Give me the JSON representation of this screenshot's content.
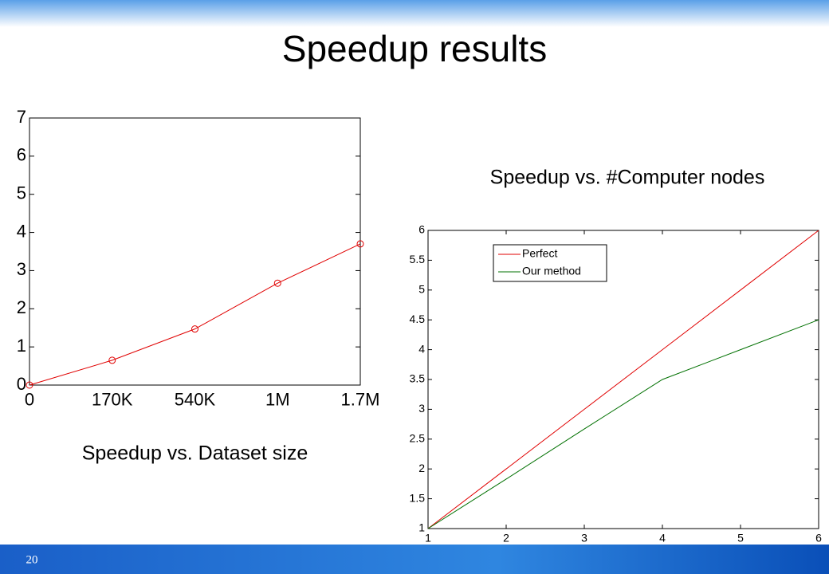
{
  "title": "Speedup results",
  "page_number": "20",
  "chart_data": [
    {
      "type": "line",
      "caption": "Speedup vs. Dataset size",
      "categories": [
        "0",
        "170K",
        "540K",
        "1M",
        "1.7M"
      ],
      "values": [
        0,
        0.65,
        1.47,
        2.67,
        3.7
      ],
      "color": "#e00000",
      "markers": true,
      "ylim": [
        0,
        7
      ],
      "yticks": [
        0,
        1,
        2,
        3,
        4,
        5,
        6,
        7
      ],
      "grid": false
    },
    {
      "type": "line",
      "title": "Speedup vs. #Computer nodes",
      "x": [
        1,
        2,
        3,
        4,
        5,
        6
      ],
      "series": [
        {
          "name": "Perfect",
          "color": "#e00000",
          "values": [
            1,
            2,
            3,
            4,
            5,
            6
          ]
        },
        {
          "name": "Our method",
          "color": "#007000",
          "values": [
            1,
            1.83,
            2.67,
            3.5,
            4,
            4.5
          ]
        }
      ],
      "xlim": [
        1,
        6
      ],
      "xticks": [
        1,
        2,
        3,
        4,
        5,
        6
      ],
      "ylim": [
        1,
        6
      ],
      "yticks": [
        1,
        1.5,
        2,
        2.5,
        3,
        3.5,
        4,
        4.5,
        5,
        5.5,
        6
      ],
      "grid": false,
      "legend": "upper-left"
    }
  ]
}
